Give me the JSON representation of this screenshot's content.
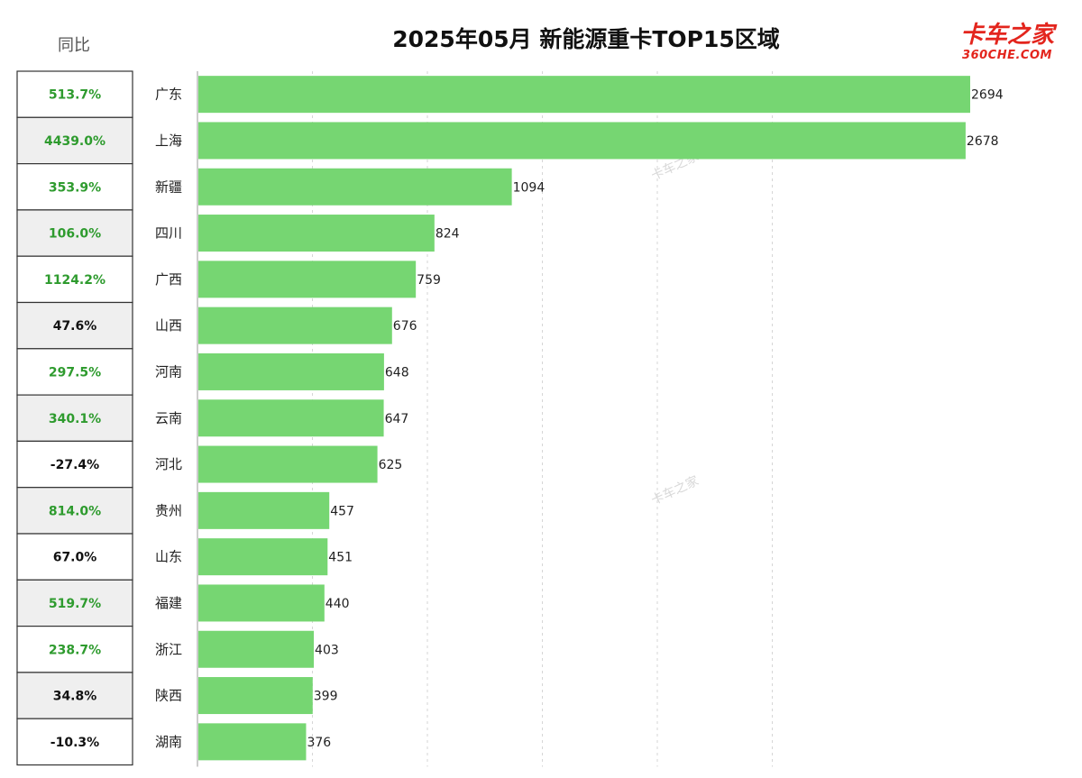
{
  "brand": {
    "logo_text": "卡车之家",
    "logo_sub": "360CHE.COM",
    "logo_color": "#e3251d",
    "watermark": "卡车之家"
  },
  "table": {
    "header": "同比"
  },
  "colors": {
    "bar": "#76d672",
    "yoy_positive": "#2e9b2e",
    "yoy_negative": "#111111",
    "row_shade": "#efefef",
    "grid": "#d6d6d6"
  },
  "chart_data": {
    "type": "bar",
    "orientation": "horizontal",
    "title": "2025年05月 新能源重卡TOP15区域",
    "categories": [
      "广东",
      "上海",
      "新疆",
      "四川",
      "广西",
      "山西",
      "河南",
      "云南",
      "河北",
      "贵州",
      "山东",
      "福建",
      "浙江",
      "陕西",
      "湖南"
    ],
    "values": [
      2694,
      2678,
      1094,
      824,
      759,
      676,
      648,
      647,
      625,
      457,
      451,
      440,
      403,
      399,
      376
    ],
    "yoy": [
      "513.7%",
      "4439.0%",
      "353.9%",
      "106.0%",
      "1124.2%",
      "47.6%",
      "297.5%",
      "340.1%",
      "-27.4%",
      "814.0%",
      "67.0%",
      "519.7%",
      "238.7%",
      "34.8%",
      "-10.3%"
    ],
    "yoy_highlight": [
      true,
      true,
      true,
      true,
      true,
      false,
      true,
      true,
      false,
      true,
      false,
      true,
      true,
      false,
      false
    ],
    "xlim": [
      0,
      2800
    ],
    "grid": true
  }
}
